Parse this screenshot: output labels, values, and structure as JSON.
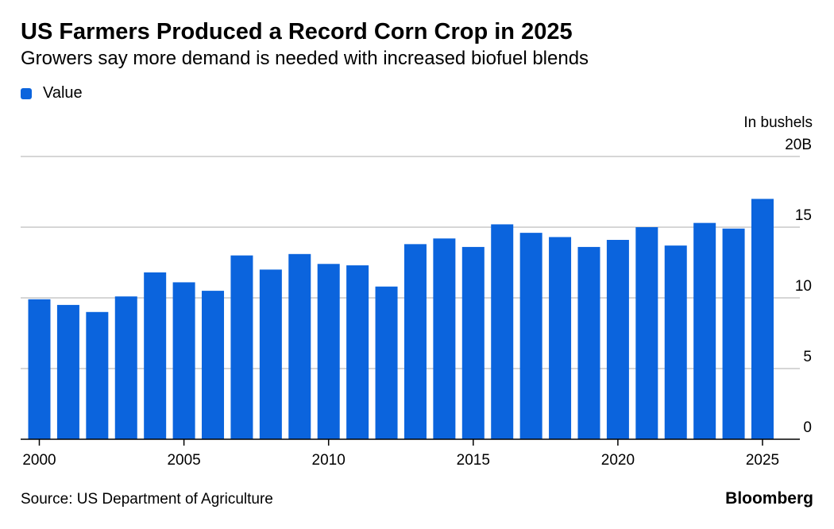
{
  "header": {
    "title": "US Farmers Produced a Record Corn Crop in 2025",
    "subtitle": "Growers say more demand is needed with increased biofuel blends"
  },
  "legend": {
    "label": "Value"
  },
  "unit_label": "In bushels",
  "footer": {
    "source": "Source: US Department of Agriculture",
    "brand": "Bloomberg"
  },
  "colors": {
    "bar": "#0b64dd",
    "grid": "#c8c8c8",
    "axis": "#000000"
  },
  "chart_data": {
    "type": "bar",
    "categories": [
      "2000",
      "2001",
      "2002",
      "2003",
      "2004",
      "2005",
      "2006",
      "2007",
      "2008",
      "2009",
      "2010",
      "2011",
      "2012",
      "2013",
      "2014",
      "2015",
      "2016",
      "2017",
      "2018",
      "2019",
      "2020",
      "2021",
      "2022",
      "2023",
      "2024",
      "2025"
    ],
    "series": [
      {
        "name": "Value",
        "values": [
          9.9,
          9.5,
          9.0,
          10.1,
          11.8,
          11.1,
          10.5,
          13.0,
          12.0,
          13.1,
          12.4,
          12.3,
          10.8,
          13.8,
          14.2,
          13.6,
          15.2,
          14.6,
          14.3,
          13.6,
          14.1,
          15.0,
          13.7,
          15.3,
          14.9,
          17.0
        ]
      }
    ],
    "y_ticks": [
      0,
      5,
      10,
      15,
      20
    ],
    "y_tick_labels": [
      "0",
      "5",
      "10",
      "15",
      "20B"
    ],
    "x_tick_labels": [
      "2000",
      "2005",
      "2010",
      "2015",
      "2020",
      "2025"
    ],
    "ylim": [
      0,
      20
    ],
    "grid": true,
    "y_axis_side": "right",
    "legend_position": "top-left"
  }
}
